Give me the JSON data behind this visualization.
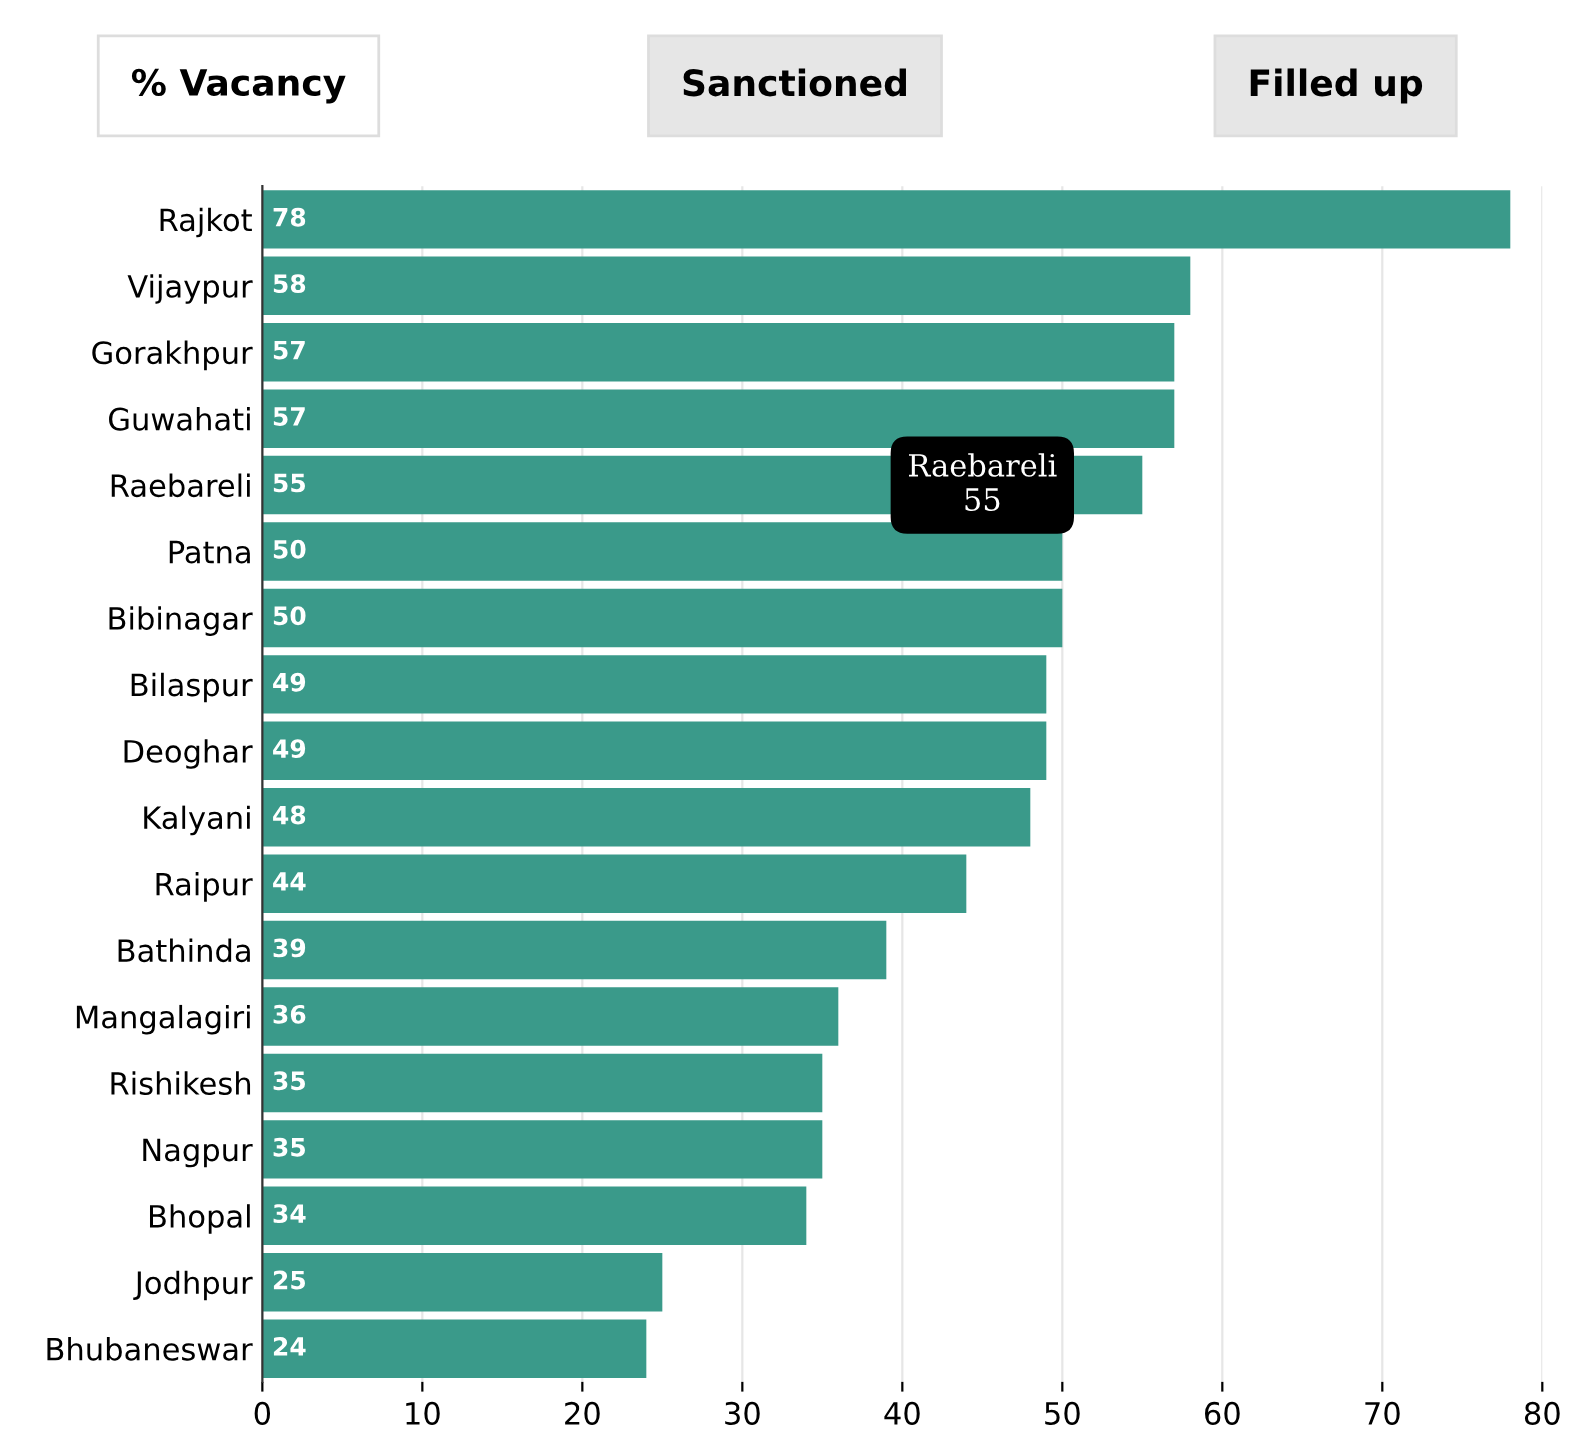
{
  "chart_data": {
    "type": "bar",
    "orientation": "horizontal",
    "categories": [
      "Rajkot",
      "Vijaypur",
      "Gorakhpur",
      "Guwahati",
      "Raebareli",
      "Patna",
      "Bibinagar",
      "Bilaspur",
      "Deoghar",
      "Kalyani",
      "Raipur",
      "Bathinda",
      "Mangalagiri",
      "Rishikesh",
      "Nagpur",
      "Bhopal",
      "Jodhpur",
      "Bhubaneswar"
    ],
    "values": [
      78,
      58,
      57,
      57,
      55,
      50,
      50,
      49,
      49,
      48,
      44,
      39,
      36,
      35,
      35,
      34,
      25,
      24
    ],
    "color": "#3a9a8a",
    "data_labels": true,
    "xlim": [
      0,
      80
    ],
    "xticks": [
      0,
      10,
      20,
      30,
      40,
      50,
      60,
      70,
      80
    ],
    "grid": "x",
    "annotations": [
      "% Vacancy",
      "Sanctioned",
      "Filled up",
      {
        "text": "Raebareli\n55",
        "x": 55,
        "y": "Raebareli"
      }
    ]
  }
}
